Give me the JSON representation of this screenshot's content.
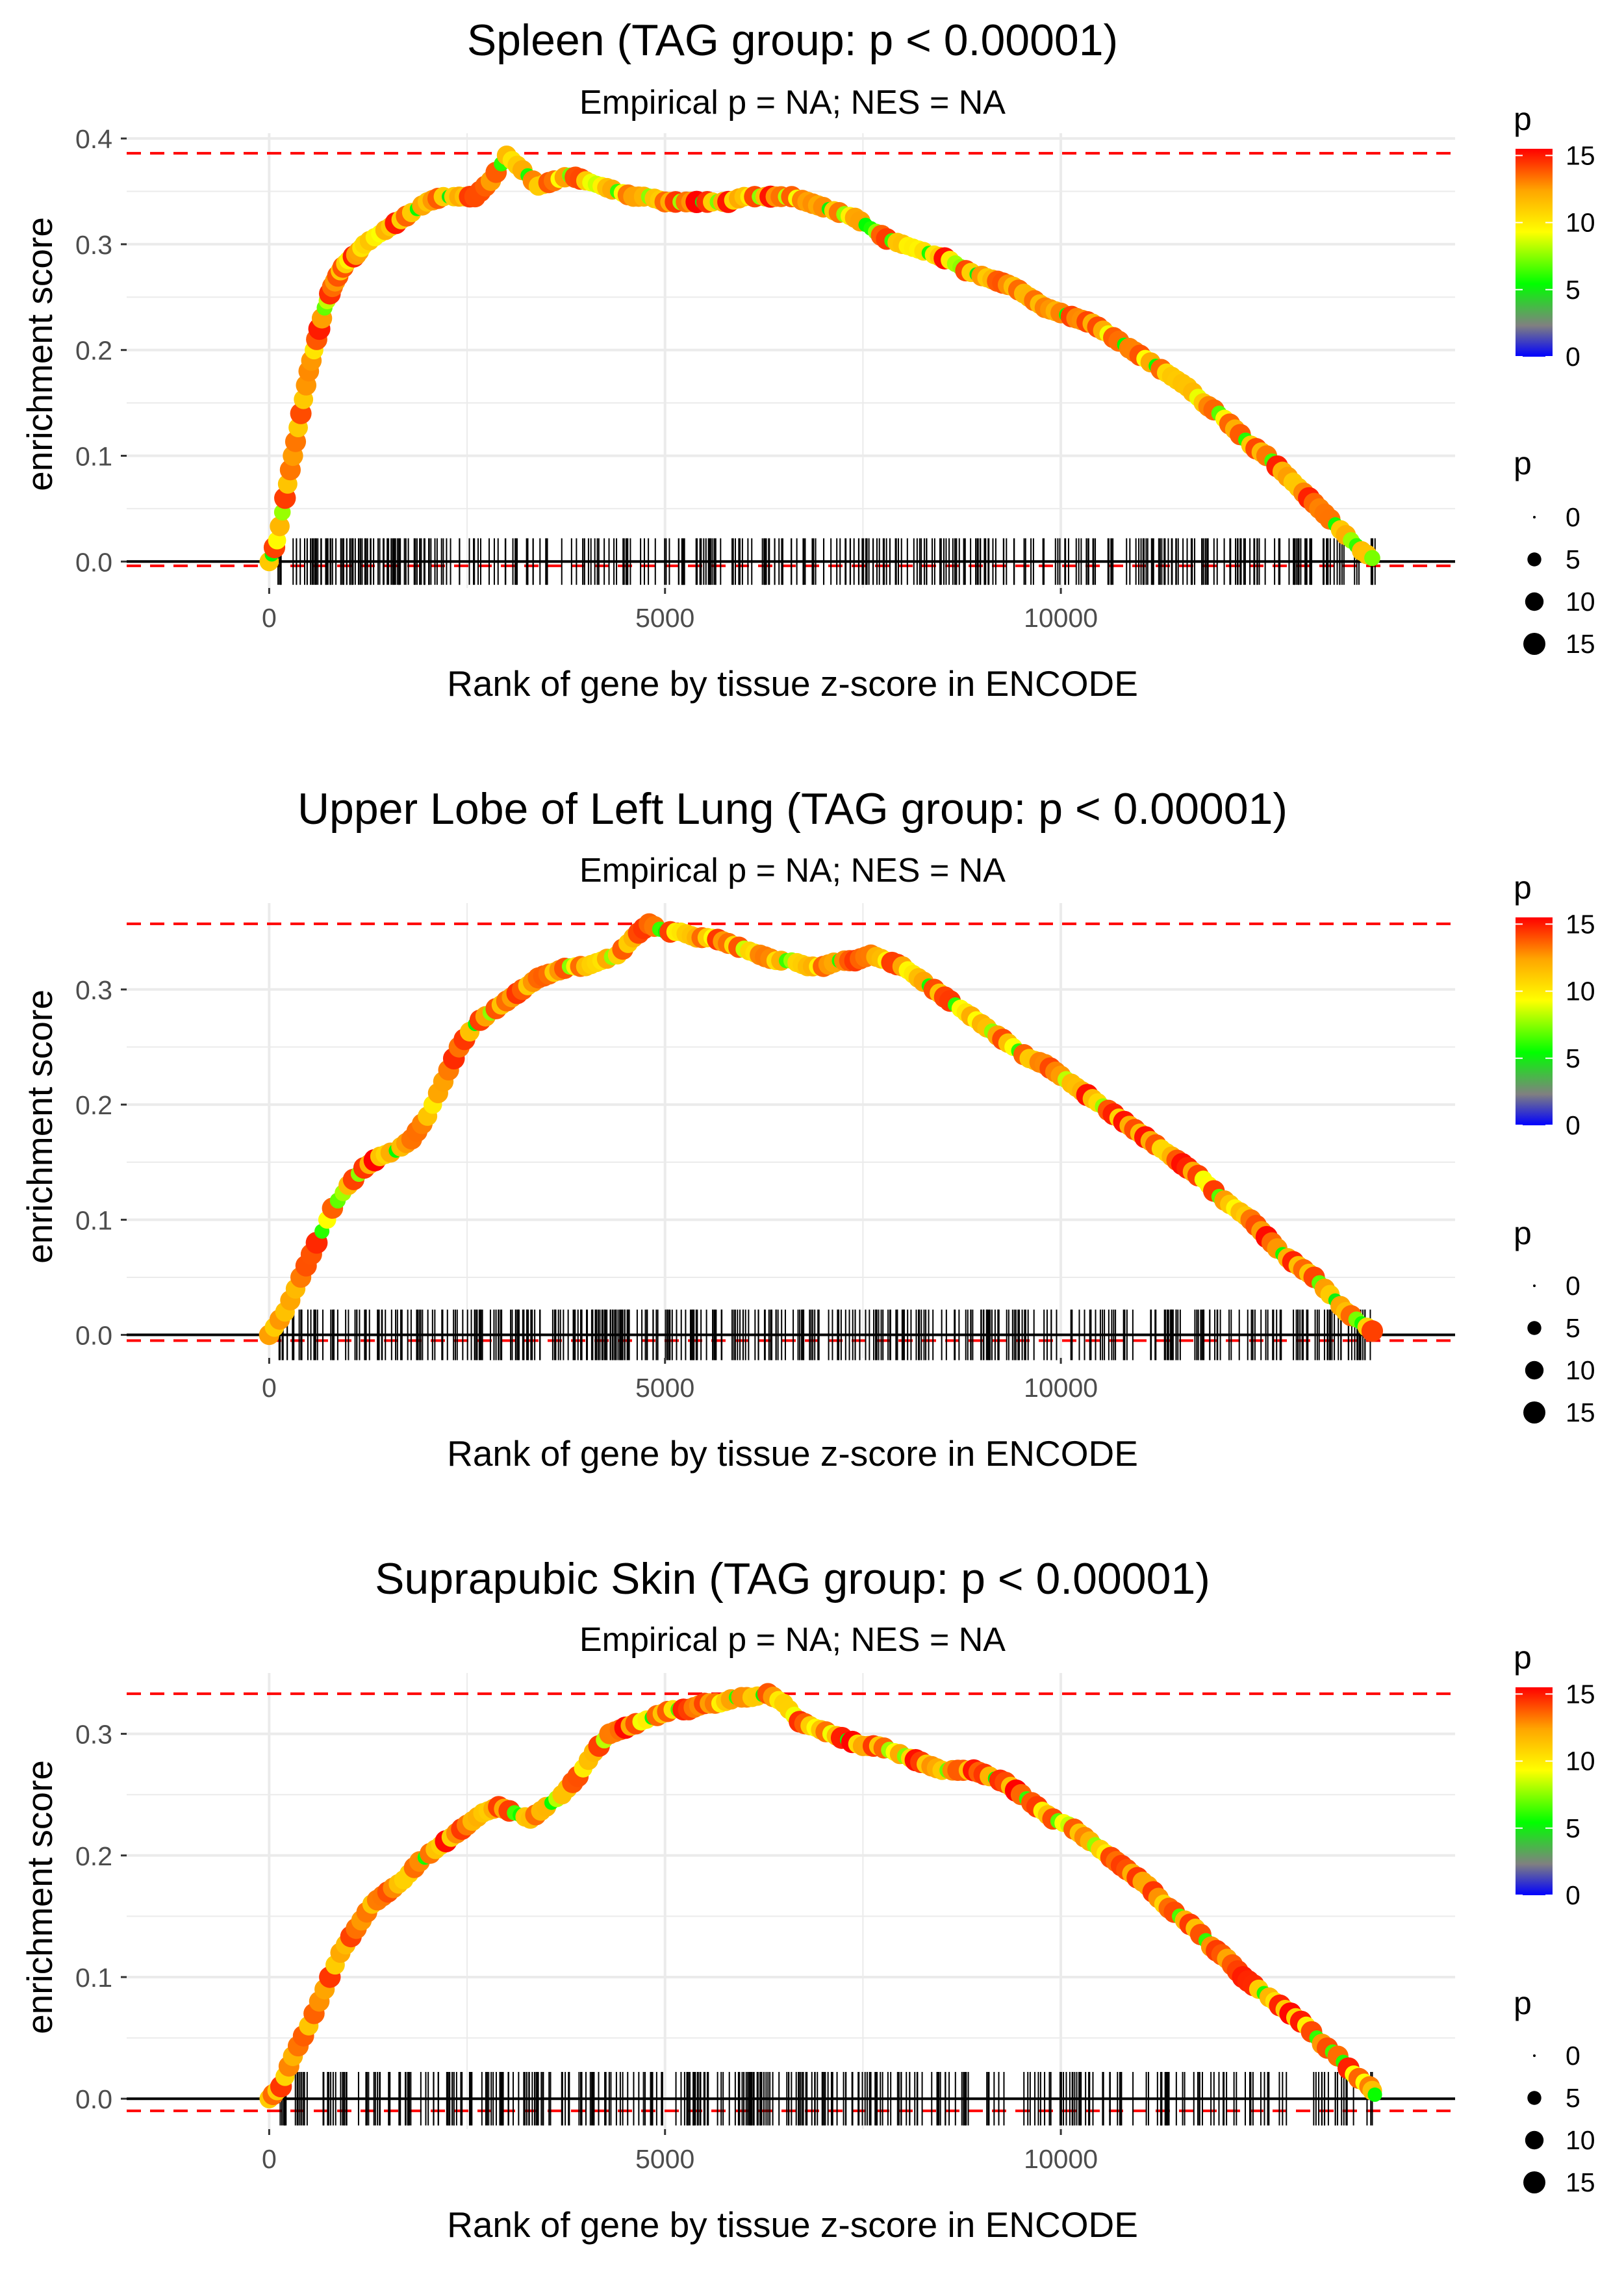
{
  "legend_text": {
    "color_title": "p",
    "size_title": "p"
  },
  "chart_data": [
    {
      "type": "line",
      "title": "Spleen (TAG group: p < 0.00001)",
      "subtitle": "Empirical p = NA; NES = NA",
      "xlabel": "Rank of gene by tissue z-score in ENCODE",
      "ylabel": "enrichment score",
      "xlim": [
        -1800,
        14980
      ],
      "ylim": [
        -0.025,
        0.405
      ],
      "x_ticks": [
        0,
        5000,
        10000
      ],
      "x_tick_labels": [
        "0",
        "5000",
        "10000"
      ],
      "y_ticks": [
        0.0,
        0.1,
        0.2,
        0.3,
        0.4
      ],
      "y_tick_labels": [
        "0.0",
        "0.1",
        "0.2",
        "0.3",
        "0.4"
      ],
      "max_es": 0.386,
      "min_es": -0.004,
      "curve": [
        [
          0,
          0.0
        ],
        [
          100,
          0.02
        ],
        [
          200,
          0.06
        ],
        [
          300,
          0.1
        ],
        [
          400,
          0.14
        ],
        [
          500,
          0.18
        ],
        [
          600,
          0.21
        ],
        [
          700,
          0.24
        ],
        [
          800,
          0.26
        ],
        [
          900,
          0.275
        ],
        [
          1000,
          0.285
        ],
        [
          1100,
          0.29
        ],
        [
          1200,
          0.3
        ],
        [
          1400,
          0.31
        ],
        [
          1600,
          0.32
        ],
        [
          1800,
          0.33
        ],
        [
          2000,
          0.34
        ],
        [
          2200,
          0.345
        ],
        [
          2400,
          0.345
        ],
        [
          2600,
          0.345
        ],
        [
          2800,
          0.36
        ],
        [
          3000,
          0.384
        ],
        [
          3200,
          0.37
        ],
        [
          3400,
          0.355
        ],
        [
          3600,
          0.36
        ],
        [
          3800,
          0.365
        ],
        [
          4000,
          0.36
        ],
        [
          4200,
          0.355
        ],
        [
          4400,
          0.35
        ],
        [
          4600,
          0.345
        ],
        [
          4800,
          0.345
        ],
        [
          5000,
          0.34
        ],
        [
          5200,
          0.34
        ],
        [
          5400,
          0.34
        ],
        [
          5600,
          0.34
        ],
        [
          5800,
          0.34
        ],
        [
          6000,
          0.345
        ],
        [
          6200,
          0.345
        ],
        [
          6400,
          0.345
        ],
        [
          6600,
          0.345
        ],
        [
          6800,
          0.34
        ],
        [
          7000,
          0.335
        ],
        [
          7200,
          0.33
        ],
        [
          7400,
          0.325
        ],
        [
          7600,
          0.315
        ],
        [
          7800,
          0.305
        ],
        [
          8000,
          0.3
        ],
        [
          8200,
          0.295
        ],
        [
          8400,
          0.29
        ],
        [
          8600,
          0.285
        ],
        [
          8800,
          0.275
        ],
        [
          9000,
          0.27
        ],
        [
          9200,
          0.265
        ],
        [
          9400,
          0.26
        ],
        [
          9600,
          0.25
        ],
        [
          9800,
          0.24
        ],
        [
          10000,
          0.235
        ],
        [
          10200,
          0.23
        ],
        [
          10400,
          0.225
        ],
        [
          10600,
          0.215
        ],
        [
          10800,
          0.205
        ],
        [
          11000,
          0.195
        ],
        [
          11200,
          0.185
        ],
        [
          11400,
          0.175
        ],
        [
          11600,
          0.165
        ],
        [
          11800,
          0.15
        ],
        [
          12000,
          0.14
        ],
        [
          12200,
          0.125
        ],
        [
          12400,
          0.11
        ],
        [
          12600,
          0.1
        ],
        [
          12800,
          0.085
        ],
        [
          13000,
          0.07
        ],
        [
          13200,
          0.055
        ],
        [
          13400,
          0.04
        ],
        [
          13600,
          0.025
        ],
        [
          13800,
          0.01
        ],
        [
          14000,
          0.0
        ]
      ],
      "rug_range": [
        100,
        13990
      ],
      "rug_density": [
        [
          100,
          2300,
          4
        ],
        [
          2300,
          3500,
          2
        ],
        [
          3500,
          5000,
          2
        ],
        [
          5000,
          6800,
          3
        ],
        [
          6800,
          9200,
          3
        ],
        [
          9200,
          11000,
          2
        ],
        [
          11000,
          13990,
          3
        ]
      ]
    },
    {
      "type": "line",
      "title": "Upper Lobe of Left Lung (TAG group: p < 0.00001)",
      "subtitle": "Empirical p = NA; NES = NA",
      "xlabel": "Rank of gene by tissue z-score in ENCODE",
      "ylabel": "enrichment score",
      "xlim": [
        -1800,
        14980
      ],
      "ylim": [
        -0.02,
        0.375
      ],
      "x_ticks": [
        0,
        5000,
        10000
      ],
      "x_tick_labels": [
        "0",
        "5000",
        "10000"
      ],
      "y_ticks": [
        0.0,
        0.1,
        0.2,
        0.3
      ],
      "y_tick_labels": [
        "0.0",
        "0.1",
        "0.2",
        "0.3"
      ],
      "max_es": 0.357,
      "min_es": -0.005,
      "curve": [
        [
          0,
          0.0
        ],
        [
          200,
          0.02
        ],
        [
          400,
          0.05
        ],
        [
          600,
          0.08
        ],
        [
          800,
          0.11
        ],
        [
          1000,
          0.13
        ],
        [
          1200,
          0.145
        ],
        [
          1400,
          0.155
        ],
        [
          1600,
          0.16
        ],
        [
          1800,
          0.17
        ],
        [
          2000,
          0.19
        ],
        [
          2200,
          0.22
        ],
        [
          2400,
          0.25
        ],
        [
          2600,
          0.27
        ],
        [
          2800,
          0.28
        ],
        [
          3000,
          0.29
        ],
        [
          3200,
          0.3
        ],
        [
          3400,
          0.31
        ],
        [
          3600,
          0.315
        ],
        [
          3800,
          0.32
        ],
        [
          4000,
          0.32
        ],
        [
          4200,
          0.325
        ],
        [
          4400,
          0.33
        ],
        [
          4600,
          0.345
        ],
        [
          4800,
          0.357
        ],
        [
          5000,
          0.35
        ],
        [
          5200,
          0.35
        ],
        [
          5400,
          0.345
        ],
        [
          5600,
          0.345
        ],
        [
          5800,
          0.34
        ],
        [
          6000,
          0.335
        ],
        [
          6200,
          0.33
        ],
        [
          6400,
          0.325
        ],
        [
          6600,
          0.325
        ],
        [
          6800,
          0.32
        ],
        [
          7000,
          0.32
        ],
        [
          7200,
          0.325
        ],
        [
          7400,
          0.325
        ],
        [
          7600,
          0.33
        ],
        [
          7800,
          0.325
        ],
        [
          8000,
          0.32
        ],
        [
          8200,
          0.31
        ],
        [
          8400,
          0.3
        ],
        [
          8600,
          0.29
        ],
        [
          8800,
          0.28
        ],
        [
          9000,
          0.27
        ],
        [
          9200,
          0.26
        ],
        [
          9400,
          0.25
        ],
        [
          9600,
          0.24
        ],
        [
          9800,
          0.235
        ],
        [
          10000,
          0.225
        ],
        [
          10200,
          0.215
        ],
        [
          10400,
          0.205
        ],
        [
          10600,
          0.195
        ],
        [
          10800,
          0.185
        ],
        [
          11000,
          0.175
        ],
        [
          11200,
          0.165
        ],
        [
          11400,
          0.155
        ],
        [
          11600,
          0.145
        ],
        [
          11800,
          0.135
        ],
        [
          12000,
          0.12
        ],
        [
          12200,
          0.11
        ],
        [
          12400,
          0.1
        ],
        [
          12600,
          0.085
        ],
        [
          12800,
          0.07
        ],
        [
          13000,
          0.06
        ],
        [
          13200,
          0.05
        ],
        [
          13400,
          0.035
        ],
        [
          13600,
          0.02
        ],
        [
          13800,
          0.01
        ],
        [
          14000,
          0.0
        ]
      ],
      "rug_range": [
        100,
        13990
      ],
      "rug_density": [
        [
          100,
          1800,
          3
        ],
        [
          1800,
          3200,
          3
        ],
        [
          3200,
          5200,
          4
        ],
        [
          5200,
          7000,
          3
        ],
        [
          7000,
          9300,
          3
        ],
        [
          9300,
          11300,
          2
        ],
        [
          11300,
          13990,
          3
        ]
      ]
    },
    {
      "type": "line",
      "title": "Suprapubic Skin (TAG group: p < 0.00001)",
      "subtitle": "Empirical p = NA; NES = NA",
      "xlabel": "Rank of gene by tissue z-score in ENCODE",
      "ylabel": "enrichment score",
      "xlim": [
        -1800,
        14980
      ],
      "ylim": [
        -0.025,
        0.35
      ],
      "x_ticks": [
        0,
        5000,
        10000
      ],
      "x_tick_labels": [
        "0",
        "5000",
        "10000"
      ],
      "y_ticks": [
        0.0,
        0.1,
        0.2,
        0.3
      ],
      "y_tick_labels": [
        "0.0",
        "0.1",
        "0.2",
        "0.3"
      ],
      "max_es": 0.333,
      "min_es": -0.01,
      "curve": [
        [
          0,
          0.0
        ],
        [
          150,
          0.01
        ],
        [
          300,
          0.035
        ],
        [
          500,
          0.06
        ],
        [
          700,
          0.09
        ],
        [
          900,
          0.12
        ],
        [
          1100,
          0.14
        ],
        [
          1300,
          0.16
        ],
        [
          1500,
          0.17
        ],
        [
          1700,
          0.18
        ],
        [
          1900,
          0.195
        ],
        [
          2100,
          0.205
        ],
        [
          2300,
          0.215
        ],
        [
          2500,
          0.225
        ],
        [
          2700,
          0.235
        ],
        [
          2900,
          0.24
        ],
        [
          3100,
          0.235
        ],
        [
          3300,
          0.23
        ],
        [
          3500,
          0.24
        ],
        [
          3700,
          0.25
        ],
        [
          3900,
          0.265
        ],
        [
          4100,
          0.285
        ],
        [
          4300,
          0.3
        ],
        [
          4500,
          0.305
        ],
        [
          4700,
          0.31
        ],
        [
          4900,
          0.315
        ],
        [
          5100,
          0.32
        ],
        [
          5300,
          0.32
        ],
        [
          5500,
          0.325
        ],
        [
          5700,
          0.325
        ],
        [
          5900,
          0.33
        ],
        [
          6100,
          0.33
        ],
        [
          6300,
          0.333
        ],
        [
          6500,
          0.325
        ],
        [
          6700,
          0.31
        ],
        [
          6900,
          0.305
        ],
        [
          7100,
          0.3
        ],
        [
          7300,
          0.295
        ],
        [
          7500,
          0.29
        ],
        [
          7700,
          0.29
        ],
        [
          7900,
          0.285
        ],
        [
          8100,
          0.28
        ],
        [
          8300,
          0.275
        ],
        [
          8500,
          0.27
        ],
        [
          8700,
          0.27
        ],
        [
          8900,
          0.27
        ],
        [
          9100,
          0.265
        ],
        [
          9300,
          0.26
        ],
        [
          9500,
          0.25
        ],
        [
          9700,
          0.24
        ],
        [
          9900,
          0.23
        ],
        [
          10100,
          0.225
        ],
        [
          10300,
          0.215
        ],
        [
          10500,
          0.205
        ],
        [
          10700,
          0.195
        ],
        [
          10900,
          0.185
        ],
        [
          11100,
          0.175
        ],
        [
          11300,
          0.16
        ],
        [
          11500,
          0.15
        ],
        [
          11700,
          0.14
        ],
        [
          11900,
          0.125
        ],
        [
          12100,
          0.115
        ],
        [
          12300,
          0.1
        ],
        [
          12500,
          0.09
        ],
        [
          12700,
          0.08
        ],
        [
          12900,
          0.07
        ],
        [
          13100,
          0.06
        ],
        [
          13300,
          0.045
        ],
        [
          13500,
          0.035
        ],
        [
          13700,
          0.02
        ],
        [
          13900,
          0.01
        ],
        [
          14000,
          0.0
        ]
      ],
      "rug_range": [
        100,
        13990
      ],
      "rug_density": [
        [
          100,
          2400,
          3
        ],
        [
          2400,
          4200,
          3
        ],
        [
          4200,
          6500,
          3
        ],
        [
          6500,
          8800,
          3
        ],
        [
          8800,
          11000,
          2
        ],
        [
          11000,
          13990,
          2
        ]
      ]
    }
  ],
  "color_legend": {
    "title": "p",
    "ticks": [
      "15",
      "10",
      "5",
      "0"
    ],
    "tick_values": [
      15,
      10,
      5,
      0
    ],
    "range": [
      0,
      15.5
    ],
    "stops": [
      "#0000ff",
      "#808080",
      "#00ff00",
      "#ffff00",
      "#ffa500",
      "#ff0000"
    ]
  },
  "size_legend": {
    "title": "p",
    "labels": [
      "0",
      "5",
      "10",
      "15"
    ],
    "values": [
      0,
      5,
      10,
      15
    ]
  },
  "colors": {
    "es_line": "#bebebe",
    "dashed": "#ff0000",
    "grid": "#ebebeb",
    "rug": "#000000",
    "zero_line": "#000000"
  }
}
